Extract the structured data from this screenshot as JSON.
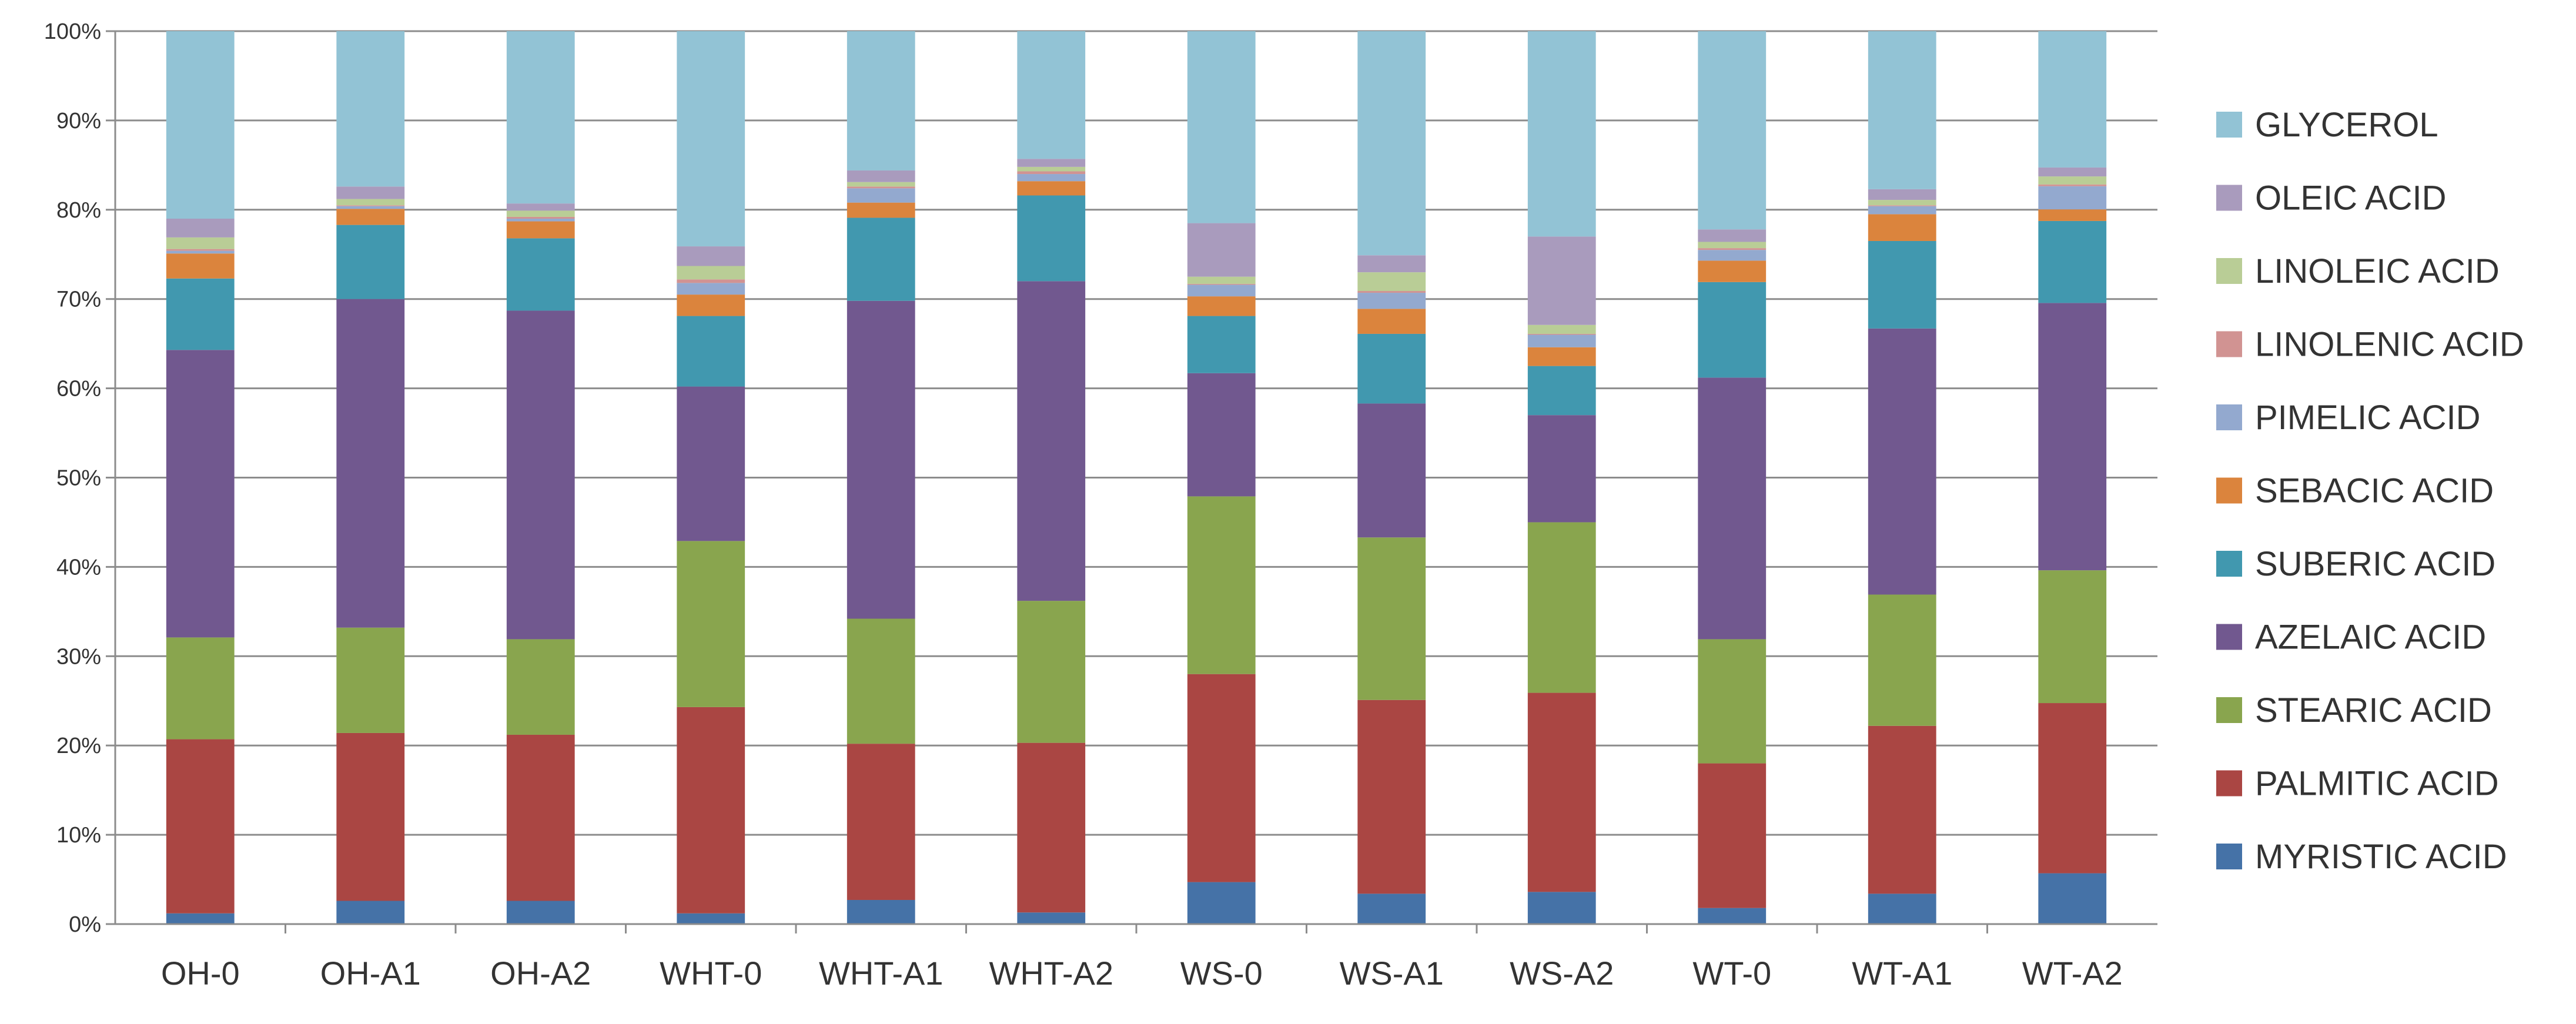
{
  "chart_data": {
    "type": "bar",
    "stacked": true,
    "percent_stacked": true,
    "title": "",
    "xlabel": "",
    "ylabel": "",
    "ylim": [
      0,
      100
    ],
    "grid": true,
    "legend_position": "right",
    "y_ticks": [
      "0%",
      "10%",
      "20%",
      "30%",
      "40%",
      "50%",
      "60%",
      "70%",
      "80%",
      "90%",
      "100%"
    ],
    "categories": [
      "OH-0",
      "OH-A1",
      "OH-A2",
      "WHT-0",
      "WHT-A1",
      "WHT-A2",
      "WS-0",
      "WS-A1",
      "WS-A2",
      "WT-0",
      "WT-A1",
      "WT-A2"
    ],
    "series": [
      {
        "name": "MYRISTIC ACID",
        "color": "#4572A7",
        "values": [
          1.2,
          2.6,
          2.6,
          1.2,
          2.7,
          1.3,
          4.7,
          3.4,
          3.6,
          1.8,
          3.4,
          5.7
        ]
      },
      {
        "name": "PALMITIC ACID",
        "color": "#AA4643",
        "values": [
          19.5,
          18.8,
          18.6,
          23.1,
          17.5,
          19.0,
          23.3,
          21.7,
          22.3,
          16.2,
          18.8,
          19.1
        ]
      },
      {
        "name": "STEARIC ACID",
        "color": "#89A54E",
        "values": [
          11.4,
          11.8,
          10.7,
          18.6,
          14.0,
          15.9,
          19.9,
          18.2,
          19.1,
          13.9,
          14.7,
          14.9
        ]
      },
      {
        "name": "AZELAIC ACID",
        "color": "#71588F",
        "values": [
          32.2,
          36.8,
          36.8,
          17.3,
          35.6,
          35.8,
          13.8,
          15.0,
          12.0,
          29.3,
          29.8,
          30.0
        ]
      },
      {
        "name": "SUBERIC ACID",
        "color": "#4198AF",
        "values": [
          8.0,
          8.3,
          8.1,
          7.9,
          9.3,
          9.6,
          6.4,
          7.8,
          5.5,
          10.7,
          9.8,
          9.2
        ]
      },
      {
        "name": "SEBACIC ACID",
        "color": "#DB843D",
        "values": [
          2.8,
          1.8,
          1.9,
          2.4,
          1.7,
          1.6,
          2.2,
          2.8,
          2.1,
          2.4,
          3.0,
          1.3
        ]
      },
      {
        "name": "PIMELIC ACID",
        "color": "#93A9CF",
        "values": [
          0.3,
          0.3,
          0.3,
          1.3,
          1.6,
          0.8,
          1.3,
          1.8,
          1.4,
          1.2,
          0.9,
          2.6
        ]
      },
      {
        "name": "LINOLENIC ACID",
        "color": "#D19392",
        "values": [
          0.2,
          0.1,
          0.2,
          0.4,
          0.2,
          0.3,
          0.1,
          0.2,
          0.1,
          0.2,
          0.1,
          0.2
        ]
      },
      {
        "name": "LINOLEIC ACID",
        "color": "#B9CD96",
        "values": [
          1.3,
          0.7,
          0.7,
          1.5,
          0.5,
          0.5,
          0.8,
          2.1,
          1.0,
          0.7,
          0.6,
          0.9
        ]
      },
      {
        "name": "OLEIC ACID",
        "color": "#A99BBD",
        "values": [
          2.1,
          1.4,
          0.8,
          2.2,
          1.3,
          0.9,
          6.0,
          1.9,
          9.9,
          1.4,
          1.2,
          1.0
        ]
      },
      {
        "name": "GLYCEROL",
        "color": "#92C3D5",
        "values": [
          21.0,
          17.4,
          19.3,
          24.1,
          15.6,
          14.3,
          21.5,
          25.1,
          23.0,
          22.2,
          17.7,
          15.3
        ]
      }
    ]
  }
}
